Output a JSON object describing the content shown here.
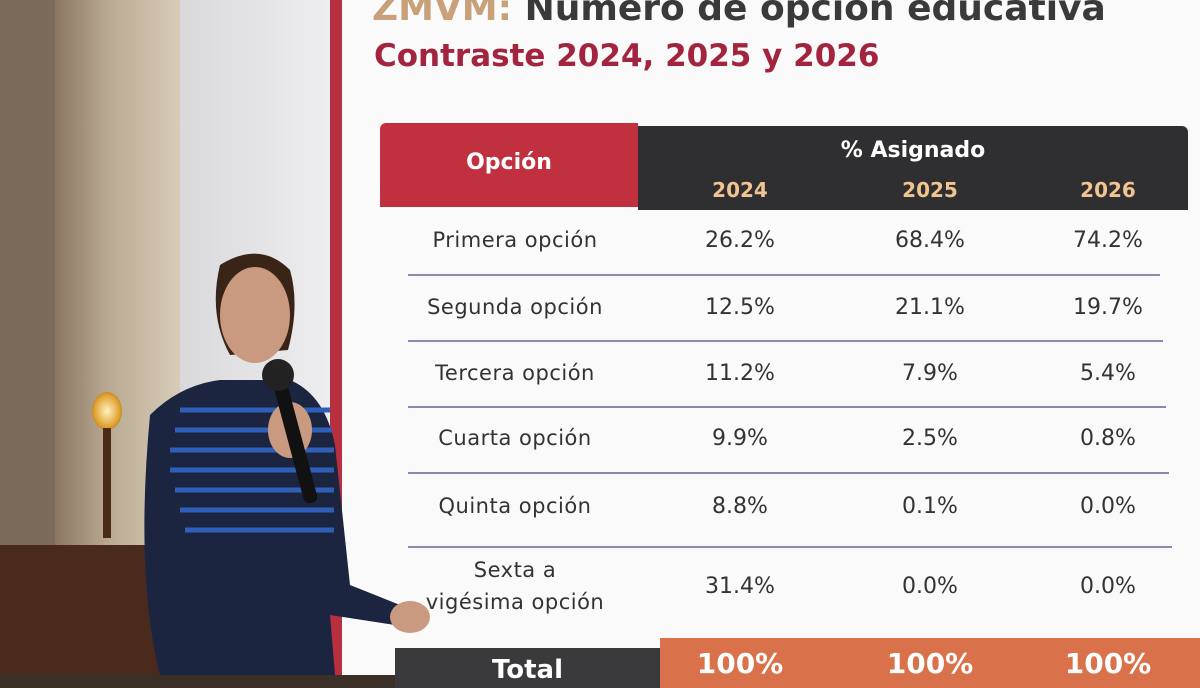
{
  "slide": {
    "title_prefix": "ZMVM:",
    "title": "Número de opción educativa",
    "subtitle": "Contraste 2024, 2025 y 2026"
  },
  "table": {
    "header": {
      "option": "Opción",
      "group": "% Asignado",
      "years": [
        "2024",
        "2025",
        "2026"
      ]
    },
    "rows": [
      {
        "label": [
          "Primera opción"
        ],
        "values": [
          "26.2%",
          "68.4%",
          "74.2%"
        ]
      },
      {
        "label": [
          "Segunda opción"
        ],
        "values": [
          "12.5%",
          "21.1%",
          "19.7%"
        ]
      },
      {
        "label": [
          "Tercera opción"
        ],
        "values": [
          "11.2%",
          "7.9%",
          "5.4%"
        ]
      },
      {
        "label": [
          "Cuarta opción"
        ],
        "values": [
          "9.9%",
          "2.5%",
          "0.8%"
        ]
      },
      {
        "label": [
          "Quinta opción"
        ],
        "values": [
          "8.8%",
          "0.1%",
          "0.0%"
        ]
      },
      {
        "label": [
          "Sexta a",
          "vigésima opción"
        ],
        "values": [
          "31.4%",
          "0.0%",
          "0.0%"
        ]
      }
    ],
    "total": {
      "label": "Total",
      "values": [
        "100%",
        "100%",
        "100%"
      ]
    }
  }
}
